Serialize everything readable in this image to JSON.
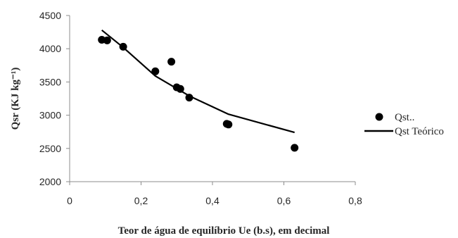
{
  "chart_data": {
    "type": "scatter",
    "title": "",
    "xlabel": "Teor de água de equilíbrio Ue (b.s), em decimal",
    "ylabel": "Qsr (KJ kg⁻¹)",
    "xlim": [
      0,
      0.8
    ],
    "ylim": [
      2000,
      4500
    ],
    "x_ticks": [
      0,
      0.2,
      0.4,
      0.6,
      0.8
    ],
    "x_tick_labels": [
      "0",
      "0,2",
      "0,4",
      "0,6",
      "0,8"
    ],
    "y_ticks": [
      2000,
      2500,
      3000,
      3500,
      4000,
      4500
    ],
    "y_tick_labels": [
      "2000",
      "2500",
      "3000",
      "3500",
      "4000",
      "4500"
    ],
    "grid": false,
    "legend_position": "right",
    "series": [
      {
        "name": "Qst..",
        "kind": "scatter",
        "color": "#000000",
        "points": [
          {
            "x": 0.09,
            "y": 4135
          },
          {
            "x": 0.105,
            "y": 4125
          },
          {
            "x": 0.15,
            "y": 4030
          },
          {
            "x": 0.24,
            "y": 3660
          },
          {
            "x": 0.285,
            "y": 3805
          },
          {
            "x": 0.3,
            "y": 3420
          },
          {
            "x": 0.31,
            "y": 3395
          },
          {
            "x": 0.335,
            "y": 3265
          },
          {
            "x": 0.44,
            "y": 2870
          },
          {
            "x": 0.445,
            "y": 2860
          },
          {
            "x": 0.63,
            "y": 2510
          }
        ]
      },
      {
        "name": "Qst Teórico",
        "kind": "line",
        "color": "#000000",
        "points": [
          {
            "x": 0.09,
            "y": 4280
          },
          {
            "x": 0.15,
            "y": 4020
          },
          {
            "x": 0.24,
            "y": 3590
          },
          {
            "x": 0.335,
            "y": 3290
          },
          {
            "x": 0.445,
            "y": 3015
          },
          {
            "x": 0.63,
            "y": 2740
          }
        ]
      }
    ]
  }
}
